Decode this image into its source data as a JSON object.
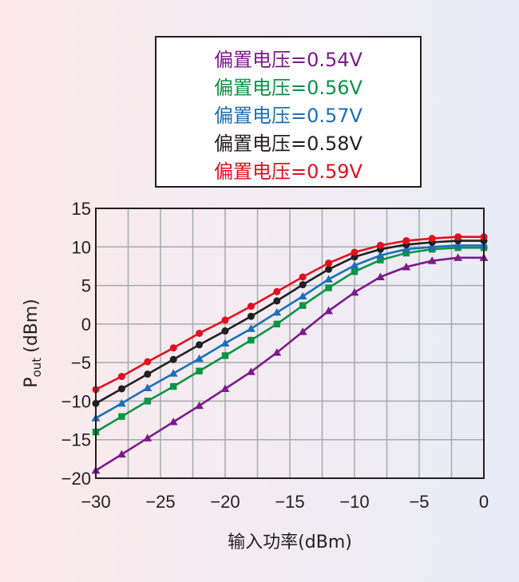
{
  "chart_data": {
    "type": "line",
    "title": "",
    "xlabel": "输入功率(dBm)",
    "ylabel": "P",
    "ylabel_sub": "out",
    "ylabel_unit": "(dBm)",
    "xlim": [
      -30,
      0
    ],
    "ylim": [
      -20,
      15
    ],
    "xticks": [
      -30,
      -25,
      -20,
      -15,
      -10,
      -5,
      0
    ],
    "yticks": [
      -20,
      -15,
      -10,
      -5,
      0,
      5,
      10,
      15
    ],
    "xtick_labels": [
      "−30",
      "−25",
      "−20",
      "−15",
      "−10",
      "−5",
      "0"
    ],
    "ytick_labels": [
      "−20",
      "−15",
      "−10",
      "−5",
      "0",
      "5",
      "10",
      "15"
    ],
    "grid": true,
    "legend_position": "top-center",
    "x": [
      -30,
      -28,
      -26,
      -24,
      -22,
      -20,
      -18,
      -16,
      -14,
      -12,
      -10,
      -8,
      -6,
      -4,
      -2,
      0
    ],
    "series": [
      {
        "name": "偏置电压=0.54V",
        "color": "#7d1a8c",
        "marker": "triangle",
        "values": [
          -19,
          -16.9,
          -14.8,
          -12.7,
          -10.6,
          -8.4,
          -6.2,
          -3.7,
          -1,
          1.7,
          4.1,
          6.1,
          7.4,
          8.2,
          8.6,
          8.6
        ]
      },
      {
        "name": "偏置电压=0.56V",
        "color": "#0b9444",
        "marker": "square",
        "values": [
          -14,
          -12,
          -10,
          -8.1,
          -6.1,
          -4.1,
          -2.1,
          0,
          2.4,
          4.7,
          6.8,
          8.3,
          9.2,
          9.7,
          9.9,
          9.9
        ]
      },
      {
        "name": "偏置电压=0.57V",
        "color": "#1b6fba",
        "marker": "triangle",
        "values": [
          -12.2,
          -10.3,
          -8.3,
          -6.4,
          -4.5,
          -2.5,
          -0.6,
          1.5,
          3.6,
          5.8,
          7.6,
          8.9,
          9.7,
          10,
          10.2,
          10.2
        ]
      },
      {
        "name": "偏置电压=0.58V",
        "color": "#231f20",
        "marker": "circle",
        "values": [
          -10.3,
          -8.4,
          -6.5,
          -4.6,
          -2.7,
          -0.9,
          1,
          3,
          5.1,
          7.1,
          8.7,
          9.7,
          10.3,
          10.6,
          10.8,
          10.8
        ]
      },
      {
        "name": "偏置电压=0.59V",
        "color": "#e2101e",
        "marker": "circle",
        "values": [
          -8.5,
          -6.8,
          -4.9,
          -3.1,
          -1.2,
          0.5,
          2.3,
          4.2,
          6.1,
          7.9,
          9.3,
          10.2,
          10.8,
          11.1,
          11.3,
          11.3
        ]
      }
    ]
  }
}
